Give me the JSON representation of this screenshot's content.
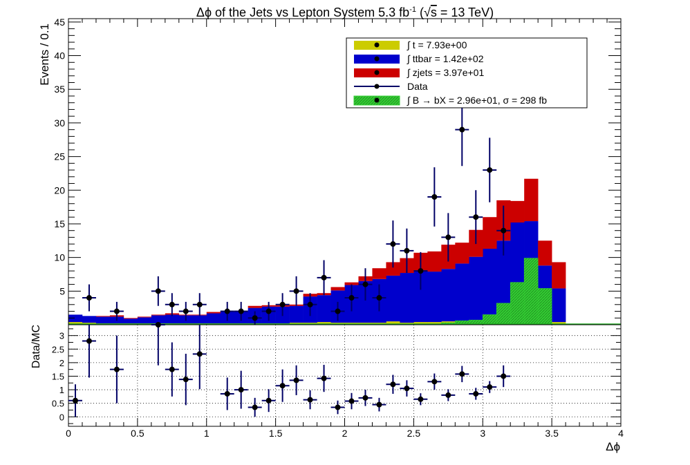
{
  "chart_data": [
    {
      "type": "bar",
      "stacked": true,
      "title": "Δϕ of the Jets vs Lepton System 5.3 fb⁻¹ (√s = 13 TeV)",
      "title_parts": {
        "pre": "Δϕ of the Jets vs Lepton System 5.3 fb",
        "sup": "-1",
        "mid": " (√",
        "s": "s",
        "post": " = 13 TeV)"
      },
      "ylabel": "Events / 0.1",
      "xlabel": "Δϕ",
      "xlim": [
        0,
        4
      ],
      "ylim": [
        0,
        45.5
      ],
      "bin_width": 0.1,
      "x_ticks": [
        "0",
        "0.5",
        "1",
        "1.5",
        "2",
        "2.5",
        "3",
        "3.5",
        "4"
      ],
      "y_ticks": [
        "5",
        "10",
        "15",
        "20",
        "25",
        "30",
        "35",
        "40",
        "45"
      ],
      "legend": {
        "placement": "top-right",
        "entries": [
          {
            "label": "∫ t = 7.93e+00",
            "color": "#cccc00",
            "kind": "fill"
          },
          {
            "label": "∫ ttbar = 1.42e+02",
            "color": "#0000cc",
            "kind": "fill"
          },
          {
            "label": "∫ zjets = 3.97e+01",
            "color": "#cc0000",
            "kind": "fill"
          },
          {
            "label": "Data",
            "color": "#000066",
            "kind": "marker"
          },
          {
            "label": "∫ B → bX = 2.96e+01, σ = 298 fb",
            "color": "#33cc33",
            "kind": "hatch"
          }
        ]
      },
      "series": [
        {
          "name": "t",
          "color": "#cccc00",
          "values": [
            0.4,
            0.3,
            0.2,
            0.2,
            0.2,
            0.2,
            0.2,
            0.2,
            0.2,
            0.2,
            0.2,
            0.2,
            0.2,
            0.2,
            0.2,
            0.2,
            0.3,
            0.3,
            0.4,
            0.3,
            0.3,
            0.3,
            0.3,
            0.5,
            0.3,
            0.4,
            0.4,
            0.5,
            0.5,
            0.3,
            1.0,
            1.5,
            1.5,
            1.3,
            0.8,
            0.4,
            0,
            0,
            0,
            0
          ]
        },
        {
          "name": "ttbar",
          "color": "#0000cc",
          "values": [
            1.1,
            1.0,
            1.0,
            1.0,
            0.7,
            0.9,
            1.2,
            1.3,
            1.2,
            1.2,
            1.5,
            1.7,
            1.8,
            2.3,
            2.5,
            2.5,
            2.5,
            3.9,
            4.0,
            4.8,
            5.6,
            6.2,
            6.5,
            6.8,
            7.4,
            7.7,
            7.5,
            7.8,
            8.6,
            9.8,
            10.3,
            11.0,
            13.7,
            14.1,
            8.0,
            5.0,
            0,
            0,
            0,
            0
          ]
        },
        {
          "name": "zjets",
          "color": "#cc0000",
          "values": [
            0.0,
            0.0,
            0.1,
            0.2,
            0.1,
            0.1,
            0.1,
            0.2,
            0.1,
            0.1,
            0.2,
            0.1,
            0.0,
            0.3,
            0.2,
            0.2,
            0.2,
            0.4,
            0.3,
            0.5,
            0.4,
            0.7,
            1.6,
            2.0,
            2.2,
            2.6,
            3.0,
            3.6,
            3.1,
            4.0,
            4.7,
            6.0,
            3.2,
            6.3,
            3.7,
            3.9,
            0,
            0,
            0,
            0
          ]
        },
        {
          "name": "B → bX",
          "color": "#33cc33",
          "values": [
            0,
            0,
            0,
            0,
            0,
            0,
            0,
            0,
            0,
            0,
            0,
            0,
            0,
            0,
            0,
            0,
            0,
            0,
            0,
            0,
            0,
            0,
            0,
            0,
            0,
            0,
            0,
            0.3,
            0.6,
            0.7,
            1.5,
            3.2,
            6.3,
            9.9,
            5.4,
            0,
            0,
            0,
            0,
            0
          ]
        }
      ],
      "data_points": [
        {
          "x": 0.15,
          "y": 4,
          "err": 2
        },
        {
          "x": 0.35,
          "y": 2,
          "err": 1.4
        },
        {
          "x": 0.65,
          "y": 5,
          "err": 2.2
        },
        {
          "x": 0.75,
          "y": 3,
          "err": 1.7
        },
        {
          "x": 0.85,
          "y": 2,
          "err": 1.4
        },
        {
          "x": 0.95,
          "y": 3,
          "err": 1.7
        },
        {
          "x": 1.15,
          "y": 2,
          "err": 1.4
        },
        {
          "x": 1.25,
          "y": 2,
          "err": 1.4
        },
        {
          "x": 1.35,
          "y": 1,
          "err": 1
        },
        {
          "x": 1.45,
          "y": 2,
          "err": 1.4
        },
        {
          "x": 1.55,
          "y": 3,
          "err": 1.7
        },
        {
          "x": 1.65,
          "y": 5,
          "err": 2.2
        },
        {
          "x": 1.75,
          "y": 3,
          "err": 1.7
        },
        {
          "x": 1.85,
          "y": 7,
          "err": 2.6
        },
        {
          "x": 1.95,
          "y": 2,
          "err": 1.4
        },
        {
          "x": 2.05,
          "y": 4,
          "err": 2
        },
        {
          "x": 2.15,
          "y": 6,
          "err": 2.4
        },
        {
          "x": 2.25,
          "y": 4,
          "err": 2
        },
        {
          "x": 2.35,
          "y": 12,
          "err": 3.5
        },
        {
          "x": 2.45,
          "y": 11,
          "err": 3.3
        },
        {
          "x": 2.55,
          "y": 8,
          "err": 2.8
        },
        {
          "x": 2.65,
          "y": 19,
          "err": 4.4
        },
        {
          "x": 2.75,
          "y": 13,
          "err": 3.6
        },
        {
          "x": 2.85,
          "y": 29,
          "err": 5.4
        },
        {
          "x": 2.95,
          "y": 16,
          "err": 4
        },
        {
          "x": 3.05,
          "y": 23,
          "err": 4.8
        },
        {
          "x": 3.15,
          "y": 14,
          "err": 3.7
        }
      ]
    },
    {
      "type": "scatter",
      "ylabel": "Data/MC",
      "xlim": [
        0,
        4
      ],
      "ylim": [
        -0.35,
        3.4
      ],
      "y_ticks": [
        "0",
        "0.5",
        "1",
        "1.5",
        "2",
        "2.5",
        "3"
      ],
      "points": [
        {
          "x": 0.05,
          "y": 0.6,
          "err": 0.6
        },
        {
          "x": 0.15,
          "y": 2.8,
          "err": 1.35
        },
        {
          "x": 0.35,
          "y": 1.75,
          "err": 1.25
        },
        {
          "x": 0.65,
          "y": 3.4,
          "err": 1.5
        },
        {
          "x": 0.75,
          "y": 1.75,
          "err": 1.0
        },
        {
          "x": 0.85,
          "y": 1.38,
          "err": 0.95
        },
        {
          "x": 0.95,
          "y": 2.32,
          "err": 1.3
        },
        {
          "x": 1.15,
          "y": 0.85,
          "err": 0.6
        },
        {
          "x": 1.25,
          "y": 1.0,
          "err": 0.7
        },
        {
          "x": 1.35,
          "y": 0.35,
          "err": 0.35
        },
        {
          "x": 1.45,
          "y": 0.6,
          "err": 0.42
        },
        {
          "x": 1.55,
          "y": 1.15,
          "err": 0.6
        },
        {
          "x": 1.65,
          "y": 1.35,
          "err": 0.55
        },
        {
          "x": 1.75,
          "y": 0.63,
          "err": 0.35
        },
        {
          "x": 1.85,
          "y": 1.42,
          "err": 0.5
        },
        {
          "x": 1.95,
          "y": 0.35,
          "err": 0.25
        },
        {
          "x": 2.05,
          "y": 0.58,
          "err": 0.3
        },
        {
          "x": 2.15,
          "y": 0.7,
          "err": 0.3
        },
        {
          "x": 2.25,
          "y": 0.45,
          "err": 0.25
        },
        {
          "x": 2.35,
          "y": 1.2,
          "err": 0.35
        },
        {
          "x": 2.45,
          "y": 1.05,
          "err": 0.3
        },
        {
          "x": 2.55,
          "y": 0.65,
          "err": 0.22
        },
        {
          "x": 2.65,
          "y": 1.3,
          "err": 0.3
        },
        {
          "x": 2.75,
          "y": 0.8,
          "err": 0.22
        },
        {
          "x": 2.85,
          "y": 1.58,
          "err": 0.3
        },
        {
          "x": 2.95,
          "y": 0.85,
          "err": 0.22
        },
        {
          "x": 3.05,
          "y": 1.1,
          "err": 0.22
        },
        {
          "x": 3.15,
          "y": 1.5,
          "err": 0.4
        }
      ]
    }
  ]
}
